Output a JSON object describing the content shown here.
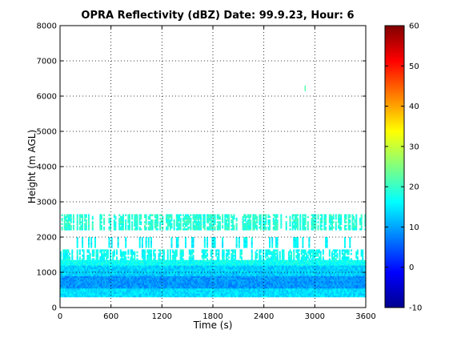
{
  "chart_data": {
    "type": "heatmap",
    "title": "OPRA Reflectivity (dBZ)  Date: 99.9.23, Hour: 6",
    "xlabel": "Time (s)",
    "ylabel": "Height (m AGL)",
    "xlim": [
      0,
      3600
    ],
    "ylim": [
      0,
      8000
    ],
    "x_ticks": [
      "0",
      "600",
      "1200",
      "1800",
      "2400",
      "3000",
      "3600"
    ],
    "y_ticks": [
      "0",
      "1000",
      "2000",
      "3000",
      "4000",
      "5000",
      "6000",
      "7000",
      "8000"
    ],
    "grid": "dotted",
    "colorbar": {
      "range": [
        -10,
        60
      ],
      "ticks": [
        "-10",
        "0",
        "10",
        "20",
        "30",
        "40",
        "50",
        "60"
      ],
      "colormap": "jet",
      "position": "right"
    },
    "echo_regions": [
      {
        "x": [
          0,
          3600
        ],
        "y": [
          300,
          550
        ],
        "dBZ": 14
      },
      {
        "x": [
          0,
          3600
        ],
        "y": [
          550,
          900
        ],
        "dBZ": 9
      },
      {
        "x": [
          0,
          3600
        ],
        "y": [
          900,
          1200
        ],
        "dBZ": 13
      },
      {
        "x": [
          0,
          3600
        ],
        "y": [
          1200,
          1350
        ],
        "dBZ": 17
      },
      {
        "x": [
          0,
          3600
        ],
        "y": [
          1350,
          1650
        ],
        "dBZ": 17,
        "patchy": true
      },
      {
        "x": [
          0,
          3600
        ],
        "y": [
          1700,
          2000
        ],
        "dBZ": 16,
        "sparse": true
      },
      {
        "x": [
          0,
          3600
        ],
        "y": [
          2200,
          2650
        ],
        "dBZ": 19,
        "patchy": true
      },
      {
        "x": [
          2880,
          2890
        ],
        "y": [
          6150,
          6300
        ],
        "dBZ": 22
      }
    ]
  },
  "colors": {
    "colormap_stops": [
      "#00008f",
      "#0000ff",
      "#0080ff",
      "#00ffff",
      "#80ff80",
      "#ffff00",
      "#ff8000",
      "#ff0000",
      "#800000"
    ]
  }
}
